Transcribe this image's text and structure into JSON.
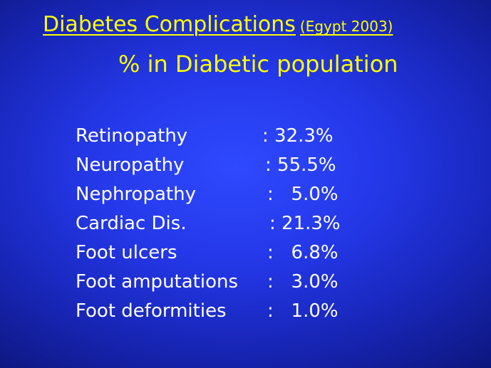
{
  "title": {
    "main": "Diabetes Complications",
    "note": "(Egypt 2003)",
    "subtitle": "% in Diabetic population"
  },
  "complications": [
    {
      "label": "Retinopathy",
      "value": ": 32.3%"
    },
    {
      "label": "Neuropathy",
      "value": ": 55.5%"
    },
    {
      "label": "Nephropathy",
      "value": ":   5.0%"
    },
    {
      "label": "Cardiac Dis.",
      "value": ": 21.3%"
    },
    {
      "label": "Foot ulcers",
      "value": ":   6.8%"
    },
    {
      "label": "Foot amputations",
      "value": ":   3.0%"
    },
    {
      "label": "Foot deformities",
      "value": ":   1.0%"
    }
  ],
  "colors": {
    "title": "#ffff00",
    "body_text": "#ffffff",
    "background": "#2438e8"
  }
}
